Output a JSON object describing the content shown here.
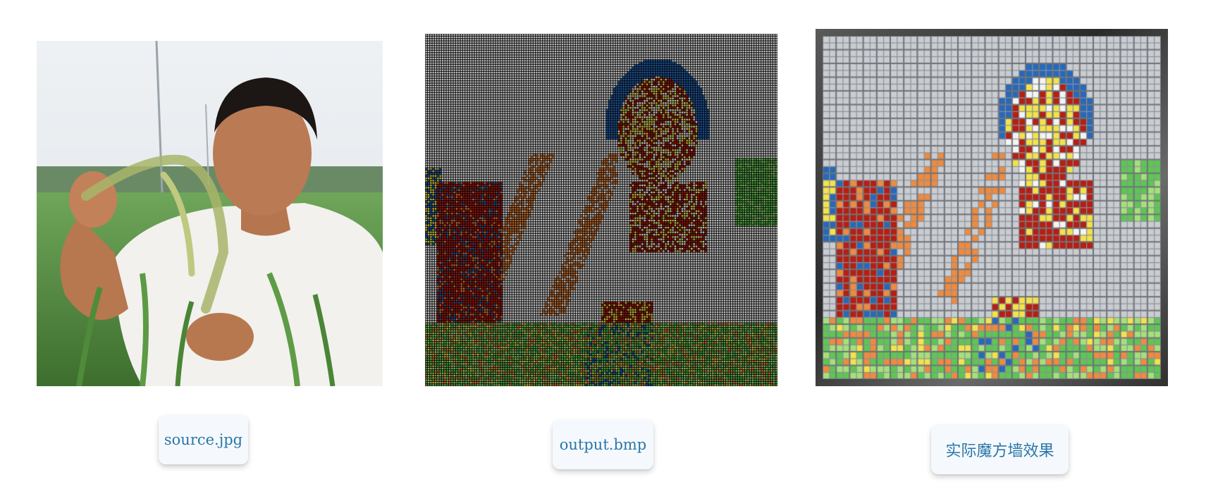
{
  "captions": {
    "source": "source.jpg",
    "output": "output.bmp",
    "wall": "实际魔方墙效果"
  },
  "palette": {
    "white": "#f4f4f4",
    "red": "#b51f14",
    "orange": "#ef8a3e",
    "yellow": "#f3e24a",
    "green": "#5ec653",
    "blue": "#2868b8",
    "light-green": "#a5e07a",
    "grey-sticker": "#c9cdd2"
  }
}
